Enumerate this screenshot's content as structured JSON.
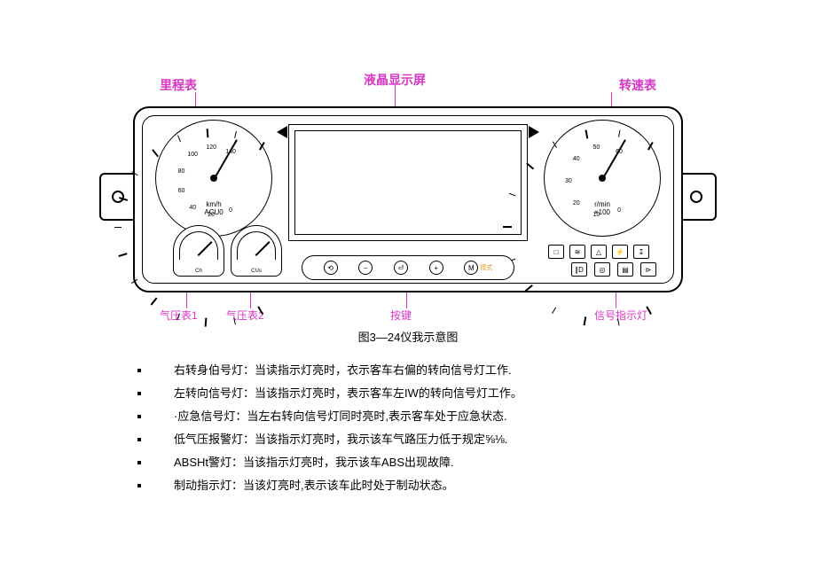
{
  "caption": "图3—24仪我示意图",
  "labels": {
    "odometer": "里程表",
    "lcd": "液晶显示屏",
    "tachometer": "转速表",
    "press1": "气压表1",
    "press2": "气压表2",
    "buttons": "按键",
    "indicators": "信号指示灯"
  },
  "label_color": "#d836c7",
  "accent_color": "#e89b2b",
  "gauges": {
    "speed": {
      "unit_top": "km/h",
      "unit_bottom": "ACU0",
      "min": 0,
      "max": 140,
      "major_step": 20,
      "needle_angle_deg": -120
    },
    "tach": {
      "unit_top": "r/min",
      "unit_bottom": "×100",
      "min": 0,
      "max": 60,
      "major_step": 10,
      "needle_angle_deg": -120
    },
    "press1": {
      "unit": "Ch",
      "needle_angle_deg": -100
    },
    "press2": {
      "unit": "CUs",
      "needle_angle_deg": -100
    }
  },
  "lcd_text": "",
  "buttons": [
    {
      "sym": "⟲",
      "lbl": ""
    },
    {
      "sym": "−",
      "lbl": ""
    },
    {
      "sym": "⏎",
      "lbl": ""
    },
    {
      "sym": "+",
      "lbl": ""
    },
    {
      "sym": "M",
      "lbl": "模式"
    }
  ],
  "indicators_bottom": [
    "∥D",
    "◎",
    "▤",
    "⊳"
  ],
  "indicators_upper": [
    "□",
    "≋",
    "△",
    "⚡",
    "↧"
  ],
  "list": [
    {
      "term": "右转身伯号灯：",
      "text": "当读指示灯亮时，衣示客车右偏的转向信号灯工作."
    },
    {
      "term": "左转向信号灯：",
      "text": "当该指示灯亮时，表示客车左IW的转向信号灯工作。"
    },
    {
      "term": "·应急信号灯：",
      "text": "当左右转向信号灯同时亮时,表示客车处于应急状态."
    },
    {
      "term": "低气压报警灯：",
      "text": "当该指示灯亮时，我示该车气路压力低于规定⅝⅛."
    },
    {
      "term": "ABSHt警灯：",
      "text": "当该指示灯亮时，我示该车ABS出现故障."
    },
    {
      "term": "制动指示灯：",
      "text": "当该灯亮时,表示该车此时处于制动状态。"
    }
  ]
}
